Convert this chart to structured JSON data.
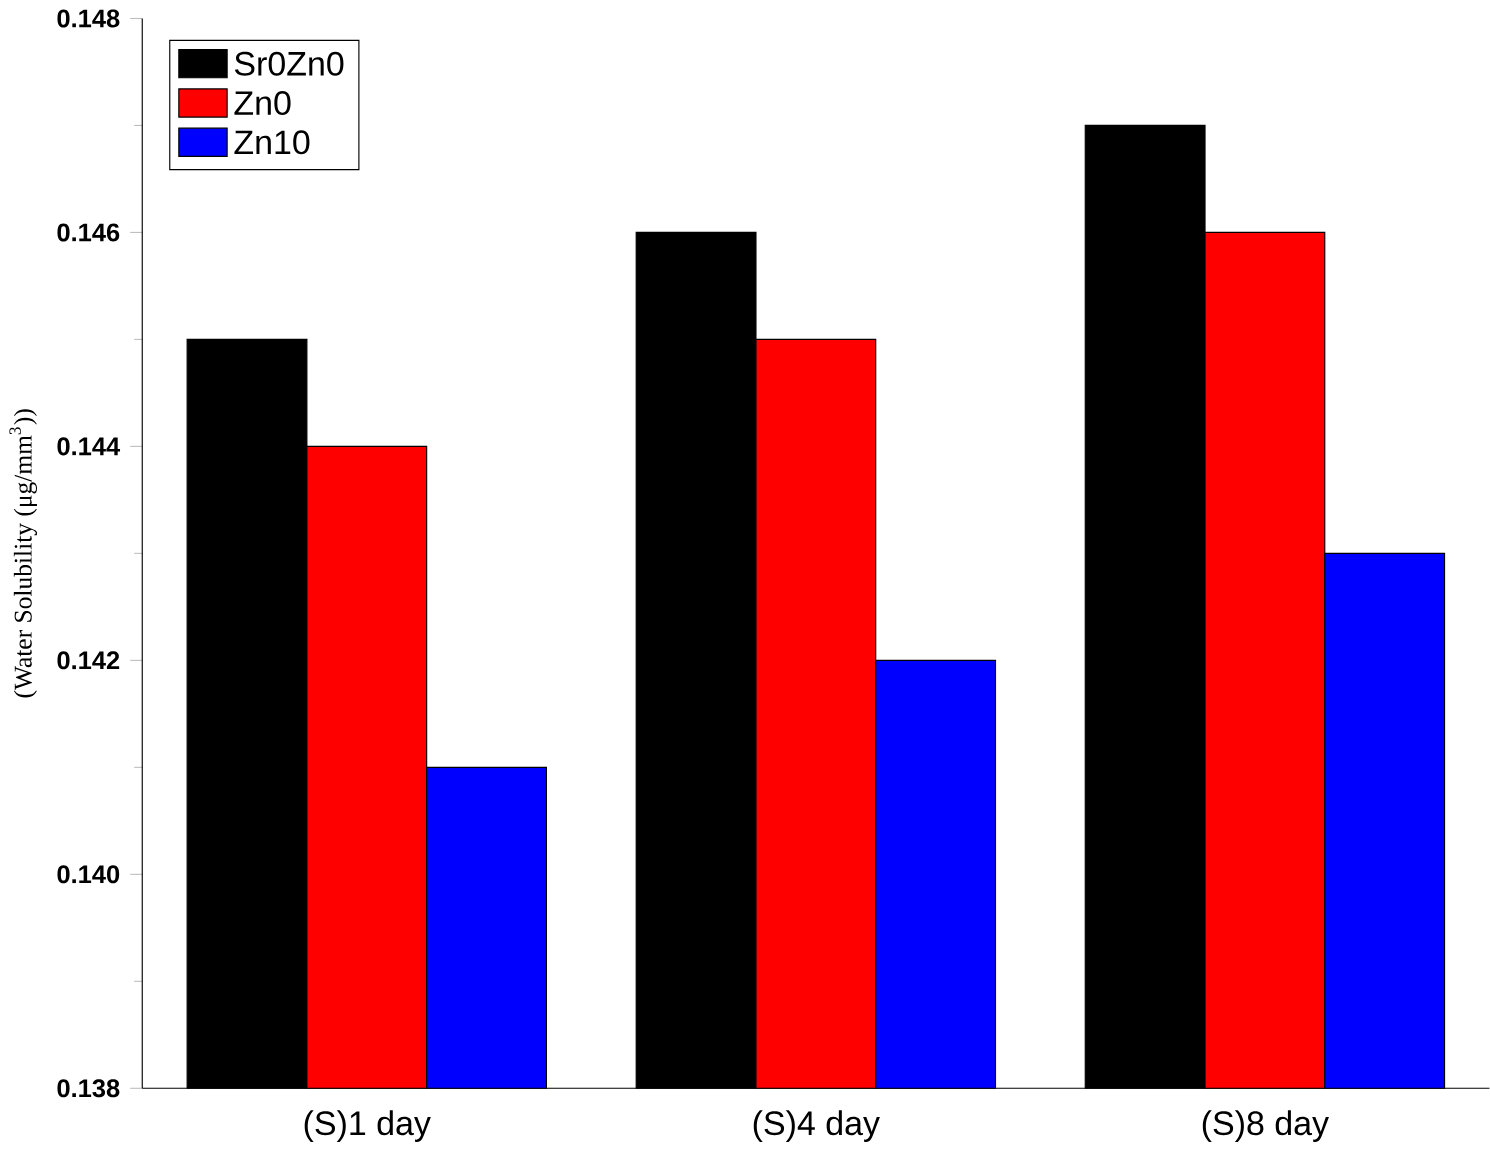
{
  "chart_data": {
    "type": "bar",
    "ylabel": "(Water Solubility (μg/mm$^{3}$))",
    "categories": [
      "(S)1 day",
      "(S)4 day",
      "(S)8 day"
    ],
    "series": [
      {
        "name": "Sr0Zn0",
        "color": "#000000",
        "values": [
          0.145,
          0.146,
          0.147
        ]
      },
      {
        "name": "Zn0",
        "color": "#ff0000",
        "values": [
          0.144,
          0.145,
          0.146
        ]
      },
      {
        "name": "Zn10",
        "color": "#0000ff",
        "values": [
          0.141,
          0.142,
          0.143
        ]
      }
    ],
    "ylim": [
      0.138,
      0.148
    ],
    "yticks": [
      0.138,
      {
        "value": 0.14,
        "label": "0.140"
      },
      0.142,
      0.144,
      0.146,
      0.148
    ],
    "grid": false,
    "legend": "top left"
  }
}
